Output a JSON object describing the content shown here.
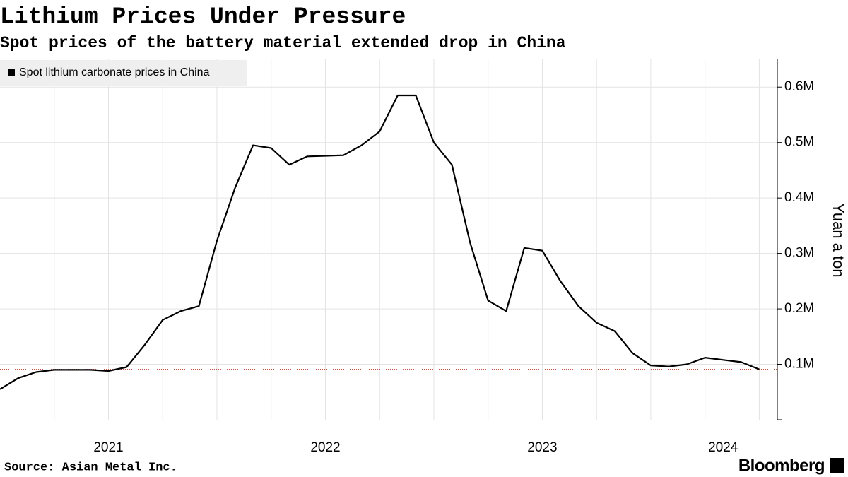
{
  "chart_data": {
    "type": "line",
    "title": "Lithium Prices Under Pressure",
    "subtitle": "Spot prices of the battery material extended drop in China",
    "source": "Source: Asian Metal Inc.",
    "brand": "Bloomberg",
    "y_axis_label": "Yuan a ton",
    "x": [
      "2021-01",
      "2021-02",
      "2021-03",
      "2021-04",
      "2021-05",
      "2021-06",
      "2021-07",
      "2021-08",
      "2021-09",
      "2021-10",
      "2021-11",
      "2021-12",
      "2022-01",
      "2022-02",
      "2022-03",
      "2022-04",
      "2022-05",
      "2022-06",
      "2022-07",
      "2022-08",
      "2022-09",
      "2022-10",
      "2022-11",
      "2022-12",
      "2023-01",
      "2023-02",
      "2023-03",
      "2023-04",
      "2023-05",
      "2023-06",
      "2023-07",
      "2023-08",
      "2023-09",
      "2023-10",
      "2023-11",
      "2023-12",
      "2024-01",
      "2024-02",
      "2024-03",
      "2024-04",
      "2024-05",
      "2024-06",
      "2024-07"
    ],
    "series": [
      {
        "name": "Spot lithium carbonate prices in China",
        "color": "#000000",
        "values": [
          55000,
          75000,
          86000,
          90000,
          90000,
          90000,
          88000,
          95000,
          135000,
          180000,
          196000,
          205000,
          323000,
          418000,
          495000,
          490000,
          460000,
          475000,
          476000,
          477000,
          495000,
          520000,
          585000,
          585000,
          500000,
          460000,
          320000,
          215000,
          196000,
          310000,
          305000,
          250000,
          205000,
          175000,
          160000,
          120000,
          98000,
          96000,
          100000,
          112000,
          108000,
          104000,
          91000
        ]
      }
    ],
    "reference_value": 91000,
    "reference_color": "#c0392b",
    "xlim": [
      "2021-01",
      "2024-08"
    ],
    "xgrid": [
      "2021-04",
      "2021-07",
      "2021-10",
      "2022-01",
      "2022-04",
      "2022-07",
      "2022-10",
      "2023-01",
      "2023-04",
      "2023-07",
      "2023-10",
      "2024-01",
      "2024-04",
      "2024-07"
    ],
    "year_labels": [
      "2021",
      "2022",
      "2023",
      "2024"
    ],
    "ylim": [
      0,
      650000
    ],
    "yticks": [
      {
        "value": 100000,
        "label": "0.1M"
      },
      {
        "value": 200000,
        "label": "0.2M"
      },
      {
        "value": 300000,
        "label": "0.3M"
      },
      {
        "value": 400000,
        "label": "0.4M"
      },
      {
        "value": 500000,
        "label": "0.5M"
      },
      {
        "value": 600000,
        "label": "0.6M"
      }
    ],
    "grid": true,
    "legend": "top-left"
  }
}
